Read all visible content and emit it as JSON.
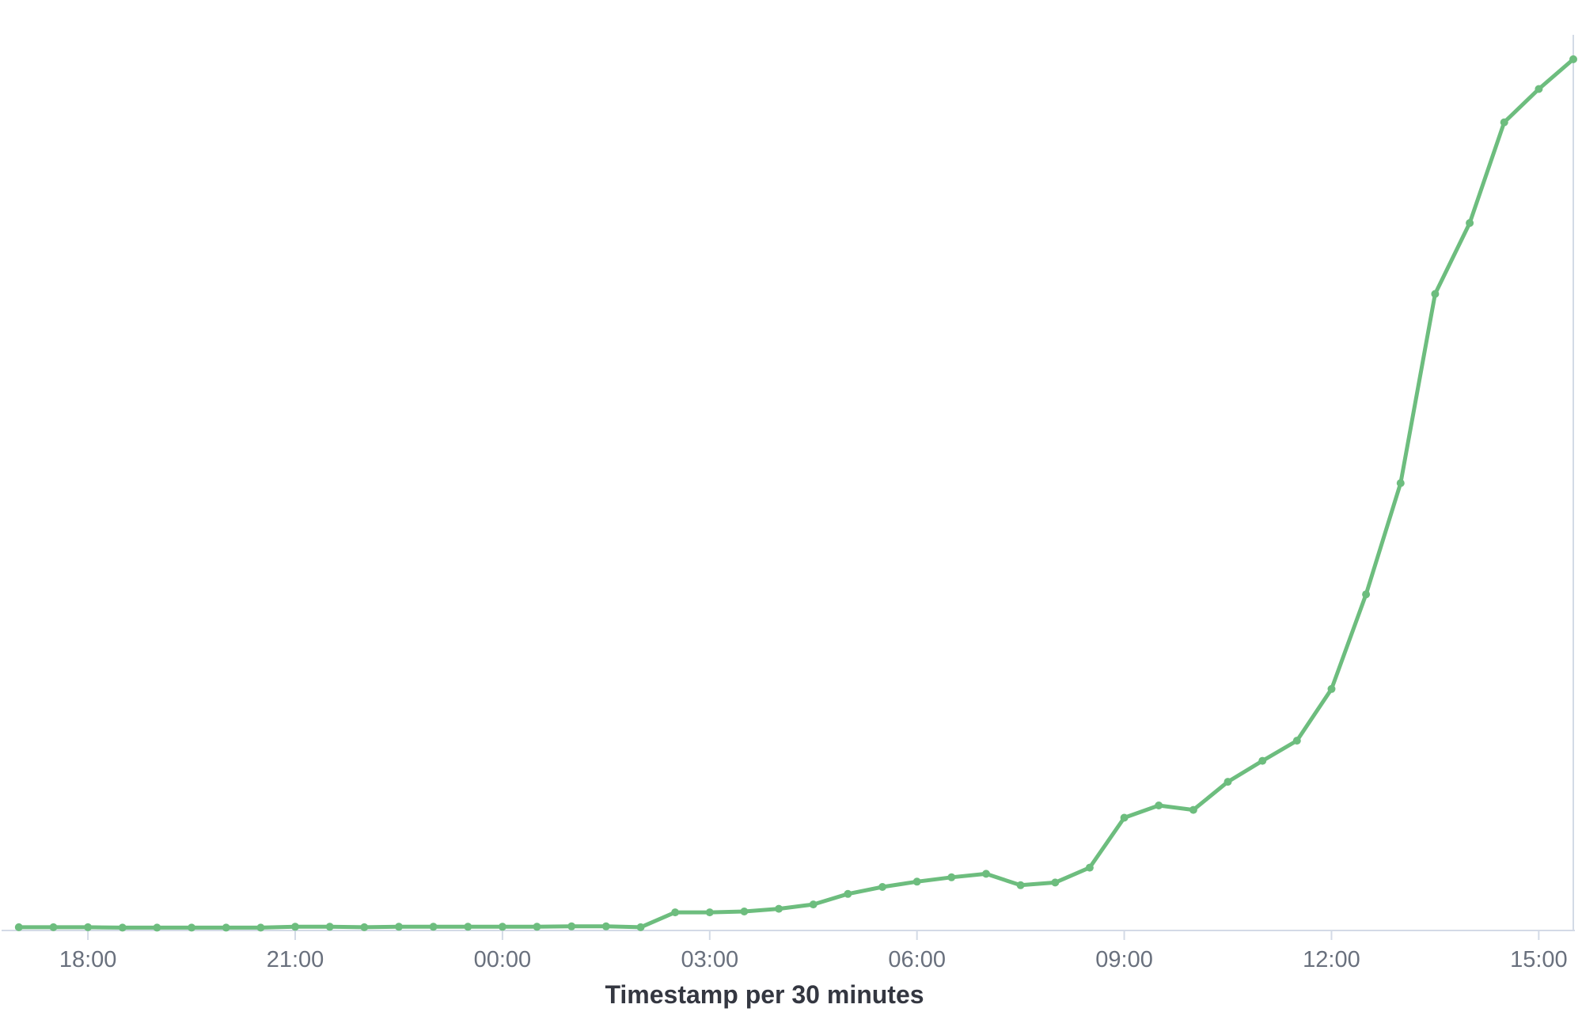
{
  "chart_data": {
    "type": "line",
    "xlabel": "Timestamp per 30 minutes",
    "ylabel": "",
    "x_ticks": [
      "18:00",
      "21:00",
      "00:00",
      "03:00",
      "06:00",
      "09:00",
      "12:00",
      "15:00"
    ],
    "x_start": "17:00",
    "x_interval_minutes": 30,
    "xlim": [
      "16:45",
      "15:30"
    ],
    "ylim": [
      0,
      100
    ],
    "y_ticks_visible": false,
    "grid": false,
    "legend": "none",
    "series": [
      {
        "color": "#6dbd7e",
        "values": [
          0.1,
          0.1,
          0.1,
          0.05,
          0.05,
          0.05,
          0.05,
          0.05,
          0.15,
          0.15,
          0.1,
          0.15,
          0.15,
          0.15,
          0.15,
          0.15,
          0.2,
          0.2,
          0.1,
          1.8,
          1.8,
          1.9,
          2.2,
          2.7,
          3.9,
          4.7,
          5.3,
          5.8,
          6.2,
          4.9,
          5.2,
          6.9,
          12.6,
          14.0,
          13.5,
          16.7,
          19.1,
          21.4,
          27.3,
          38.1,
          50.8,
          72.4,
          80.5,
          92.0,
          95.8,
          99.2
        ]
      }
    ]
  }
}
